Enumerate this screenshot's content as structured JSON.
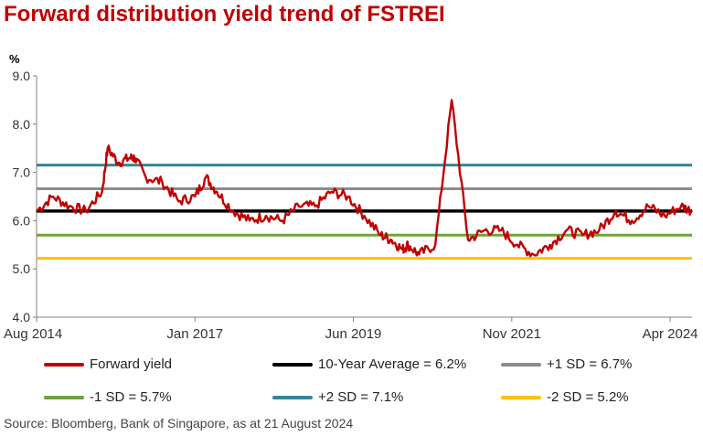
{
  "title": "Forward distribution yield trend of FSTREI",
  "unit_label": "%",
  "source": "Source: Bloomberg, Bank of Singapore, as at 21 August 2024",
  "colors": {
    "forward_yield": "#c00000",
    "avg": "#000000",
    "plus1": "#8c8c8c",
    "minus1": "#70a33b",
    "plus2": "#31869b",
    "minus2": "#ffc000",
    "title": "#c00000"
  },
  "chart_data": {
    "type": "line",
    "title": "Forward distribution yield trend of FSTREI",
    "ylabel": "%",
    "xlabel": "",
    "ylim": [
      4.0,
      9.0
    ],
    "y_ticks": [
      "4.0",
      "5.0",
      "6.0",
      "7.0",
      "8.0",
      "9.0"
    ],
    "x_ticks": [
      "Aug 2014",
      "Jan 2017",
      "Jun 2019",
      "Nov 2021",
      "Apr 2024"
    ],
    "xlim": [
      "2014-08",
      "2024-08"
    ],
    "grid": false,
    "legend_position": "bottom",
    "series": [
      {
        "name": "Forward yield",
        "color": "#c00000",
        "x": [
          "2014-08",
          "2014-11",
          "2015-02",
          "2015-05",
          "2015-08",
          "2015-09",
          "2015-11",
          "2016-01",
          "2016-02",
          "2016-04",
          "2016-07",
          "2016-10",
          "2017-01",
          "2017-03",
          "2017-05",
          "2017-08",
          "2017-11",
          "2018-02",
          "2018-05",
          "2018-08",
          "2018-11",
          "2019-02",
          "2019-05",
          "2019-08",
          "2019-11",
          "2020-01",
          "2020-03",
          "2020-04",
          "2020-06",
          "2020-09",
          "2020-12",
          "2021-03",
          "2021-06",
          "2021-09",
          "2021-12",
          "2022-03",
          "2022-06",
          "2022-09",
          "2022-12",
          "2023-03",
          "2023-06",
          "2023-09",
          "2023-12",
          "2024-03",
          "2024-06",
          "2024-08"
        ],
        "values": [
          6.2,
          6.5,
          6.3,
          6.2,
          6.6,
          7.5,
          7.2,
          7.3,
          7.3,
          6.9,
          6.8,
          6.4,
          6.5,
          6.9,
          6.6,
          6.2,
          6.0,
          6.1,
          6.0,
          6.3,
          6.3,
          6.6,
          6.5,
          6.1,
          5.7,
          5.6,
          5.4,
          5.5,
          5.3,
          5.5,
          8.5,
          5.6,
          5.8,
          5.8,
          5.5,
          5.3,
          5.5,
          5.8,
          5.7,
          5.8,
          6.2,
          6.0,
          6.3,
          6.1,
          6.3,
          6.2
        ]
      },
      {
        "name": "10-Year Average = 6.2%",
        "color": "#000000",
        "values": [
          6.2
        ],
        "constant": true
      },
      {
        "name": "+1 SD = 6.7%",
        "color": "#8c8c8c",
        "values": [
          6.66
        ],
        "constant": true
      },
      {
        "name": "-1 SD = 5.7%",
        "color": "#70a33b",
        "values": [
          5.7
        ],
        "constant": true
      },
      {
        "name": "+2 SD = 7.1%",
        "color": "#31869b",
        "values": [
          7.15
        ],
        "constant": true
      },
      {
        "name": "-2 SD = 5.2%",
        "color": "#ffc000",
        "values": [
          5.22
        ],
        "constant": true
      }
    ]
  },
  "legend": [
    {
      "label": "Forward yield",
      "color": "#c00000"
    },
    {
      "label": "10-Year Average = 6.2%",
      "color": "#000000"
    },
    {
      "label": "+1 SD = 6.7%",
      "color": "#8c8c8c"
    },
    {
      "label": "-1 SD = 5.7%",
      "color": "#70a33b"
    },
    {
      "label": "+2 SD = 7.1%",
      "color": "#31869b"
    },
    {
      "label": "-2 SD = 5.2%",
      "color": "#ffc000"
    }
  ]
}
